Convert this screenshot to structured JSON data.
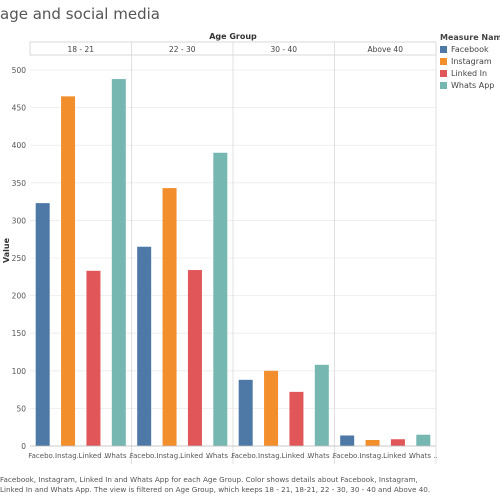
{
  "page": {
    "title": "age and social media",
    "caption": "Facebook, Instagram, Linked In and Whats App for each Age Group.  Color shows details about Facebook, Instagram, Linked In and Whats App. The view is filtered on Age Group, which keeps 18 - 21, 18-21, 22 - 30, 30 - 40 and Above 40."
  },
  "legend": {
    "title": "Measure Names",
    "items": [
      {
        "label": "Facebook",
        "color": "#4e79a7"
      },
      {
        "label": "Instagram",
        "color": "#f28e2b"
      },
      {
        "label": "Linked In",
        "color": "#e15759"
      },
      {
        "label": "Whats App",
        "color": "#76b7b2"
      }
    ]
  },
  "chart_data": {
    "type": "bar",
    "column_header_title": "Age Group",
    "categories": [
      "18 - 21",
      "22 - 30",
      "30 - 40",
      "Above 40"
    ],
    "tick_labels": [
      "Facebo..",
      "Instag..",
      "Linked ..",
      "Whats .."
    ],
    "ylabel": "Value",
    "ylim": [
      0,
      520
    ],
    "yticks": [
      0,
      50,
      100,
      150,
      200,
      250,
      300,
      350,
      400,
      450,
      500
    ],
    "grid": true,
    "legend_position": "right",
    "series": [
      {
        "name": "Facebook",
        "color": "#4e79a7",
        "values": [
          323,
          265,
          88,
          14
        ]
      },
      {
        "name": "Instagram",
        "color": "#f28e2b",
        "values": [
          465,
          343,
          100,
          8
        ]
      },
      {
        "name": "Linked In",
        "color": "#e15759",
        "values": [
          233,
          234,
          72,
          9
        ]
      },
      {
        "name": "Whats App",
        "color": "#76b7b2",
        "values": [
          488,
          390,
          108,
          15
        ]
      }
    ]
  }
}
